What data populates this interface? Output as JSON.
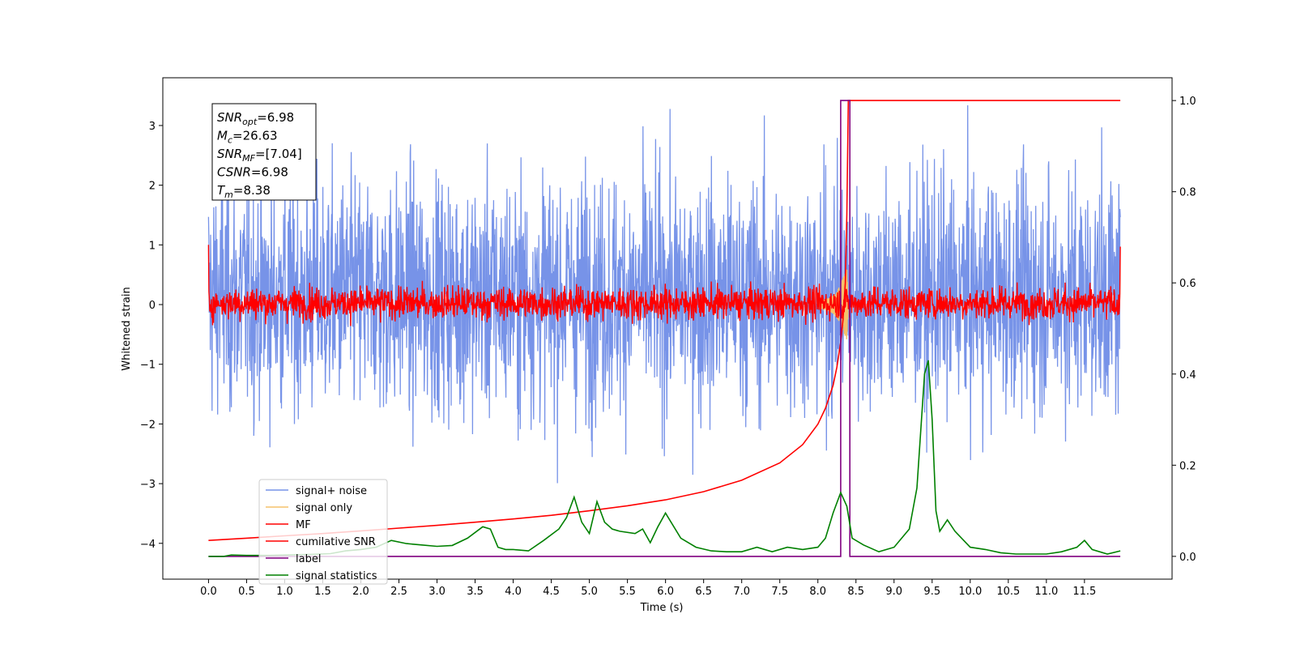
{
  "chart_data": {
    "type": "line",
    "xlabel": "Time (s)",
    "ylabel": "Whitened strain",
    "xlim": [
      -0.6,
      12.65
    ],
    "ylim": [
      -4.6,
      3.8
    ],
    "ylim_right": [
      -0.05,
      1.05
    ],
    "x_ticks": [
      0.0,
      0.5,
      1.0,
      1.5,
      2.0,
      2.5,
      3.0,
      3.5,
      4.0,
      4.5,
      5.0,
      5.5,
      6.0,
      6.5,
      7.0,
      7.5,
      8.0,
      8.5,
      9.0,
      9.5,
      10.0,
      10.5,
      11.0,
      11.5
    ],
    "x_tick_labels": [
      "0.0",
      "0.5",
      "1.0",
      "1.5",
      "2.0",
      "2.5",
      "3.0",
      "3.5",
      "4.0",
      "4.5",
      "5.0",
      "5.5",
      "6.0",
      "6.5",
      "7.0",
      "7.5",
      "8.0",
      "8.5",
      "9.0",
      "9.5",
      "10.0",
      "10.5",
      "11.0",
      "11.5"
    ],
    "y_ticks": [
      -4,
      -3,
      -2,
      -1,
      0,
      1,
      2,
      3
    ],
    "y_tick_labels": [
      "−4",
      "−3",
      "−2",
      "−1",
      "0",
      "1",
      "2",
      "3"
    ],
    "y_right_ticks": [
      0.0,
      0.2,
      0.4,
      0.6,
      0.8,
      1.0
    ],
    "y_right_tick_labels": [
      "0.0",
      "0.2",
      "0.4",
      "0.6",
      "0.8",
      "1.0"
    ],
    "legend_placement": "lower-left",
    "annotation": {
      "lines": [
        {
          "base": "SNR",
          "sub": "opt",
          "value": "=6.98"
        },
        {
          "base": "M",
          "sub": "c",
          "value": "=26.63"
        },
        {
          "base": "SNR",
          "sub": "MF",
          "value": "=[7.04]"
        },
        {
          "base": "CSNR",
          "sub": "",
          "value": "=6.98"
        },
        {
          "base": "T",
          "sub": "m",
          "value": "=8.38"
        }
      ]
    },
    "series": [
      {
        "name": "signal+ noise",
        "color": "#7793e8",
        "axis": "left",
        "kind": "noise_band",
        "x_range": [
          0.0,
          11.97
        ],
        "typical_range": [
          -1.5,
          1.8
        ],
        "extremes": [
          -3.0,
          3.45
        ]
      },
      {
        "name": "signal only",
        "color": "#f5c26b",
        "axis": "left",
        "kind": "chirp",
        "x": [
          8.0,
          8.1,
          8.2,
          8.25,
          8.3,
          8.35,
          8.38,
          8.4
        ],
        "amplitude": [
          0.05,
          0.08,
          0.15,
          0.22,
          0.35,
          0.5,
          0.6,
          0.0
        ]
      },
      {
        "name": "MF",
        "color": "#ff0000",
        "axis": "left",
        "kind": "noise_band",
        "x_range": [
          0.0,
          11.97
        ],
        "typical_range": [
          -0.2,
          0.25
        ],
        "extremes": [
          -0.4,
          0.45
        ],
        "edges": {
          "start": 1.0,
          "end": 0.97
        }
      },
      {
        "name": "cumilative SNR",
        "color": "#ff0000",
        "axis": "right",
        "x": [
          0.0,
          0.5,
          1.0,
          1.5,
          2.0,
          2.5,
          3.0,
          3.5,
          4.0,
          4.5,
          5.0,
          5.5,
          6.0,
          6.5,
          7.0,
          7.5,
          7.8,
          8.0,
          8.1,
          8.2,
          8.25,
          8.3,
          8.33,
          8.36,
          8.38,
          8.4,
          9.0,
          10.0,
          11.0,
          11.97
        ],
        "y": [
          0.035,
          0.04,
          0.045,
          0.05,
          0.056,
          0.062,
          0.068,
          0.075,
          0.082,
          0.09,
          0.1,
          0.111,
          0.124,
          0.142,
          0.167,
          0.205,
          0.245,
          0.29,
          0.325,
          0.375,
          0.415,
          0.47,
          0.52,
          0.6,
          0.75,
          1.0,
          1.0,
          1.0,
          1.0,
          1.0
        ]
      },
      {
        "name": "label",
        "color": "#800080",
        "axis": "right",
        "x": [
          0.0,
          8.3,
          8.3,
          8.42,
          8.42,
          11.97
        ],
        "y": [
          0.0,
          0.0,
          1.0,
          1.0,
          0.0,
          0.0
        ]
      },
      {
        "name": "signal statistics",
        "color": "#008000",
        "axis": "right",
        "x": [
          0.0,
          0.2,
          0.3,
          0.5,
          0.8,
          1.0,
          1.3,
          1.6,
          1.8,
          2.0,
          2.2,
          2.4,
          2.6,
          2.8,
          3.0,
          3.2,
          3.4,
          3.6,
          3.7,
          3.8,
          3.9,
          4.0,
          4.2,
          4.4,
          4.6,
          4.7,
          4.8,
          4.9,
          5.0,
          5.1,
          5.2,
          5.3,
          5.4,
          5.6,
          5.7,
          5.8,
          5.9,
          6.0,
          6.2,
          6.4,
          6.6,
          6.8,
          7.0,
          7.2,
          7.4,
          7.6,
          7.8,
          8.0,
          8.1,
          8.2,
          8.3,
          8.38,
          8.45,
          8.6,
          8.8,
          9.0,
          9.2,
          9.3,
          9.4,
          9.45,
          9.5,
          9.55,
          9.6,
          9.7,
          9.8,
          10.0,
          10.2,
          10.4,
          10.6,
          10.8,
          11.0,
          11.2,
          11.4,
          11.5,
          11.6,
          11.8,
          11.97
        ],
        "y": [
          0.0,
          0.0,
          0.003,
          0.002,
          0.002,
          0.003,
          0.004,
          0.006,
          0.012,
          0.015,
          0.02,
          0.035,
          0.028,
          0.025,
          0.022,
          0.024,
          0.04,
          0.065,
          0.06,
          0.02,
          0.015,
          0.015,
          0.012,
          0.035,
          0.06,
          0.085,
          0.13,
          0.075,
          0.05,
          0.12,
          0.075,
          0.06,
          0.055,
          0.05,
          0.06,
          0.03,
          0.065,
          0.095,
          0.04,
          0.02,
          0.012,
          0.01,
          0.01,
          0.02,
          0.01,
          0.02,
          0.015,
          0.02,
          0.04,
          0.095,
          0.14,
          0.11,
          0.04,
          0.025,
          0.01,
          0.02,
          0.06,
          0.15,
          0.4,
          0.43,
          0.3,
          0.1,
          0.055,
          0.08,
          0.055,
          0.02,
          0.015,
          0.008,
          0.005,
          0.005,
          0.005,
          0.01,
          0.02,
          0.035,
          0.015,
          0.005,
          0.012
        ]
      }
    ]
  }
}
